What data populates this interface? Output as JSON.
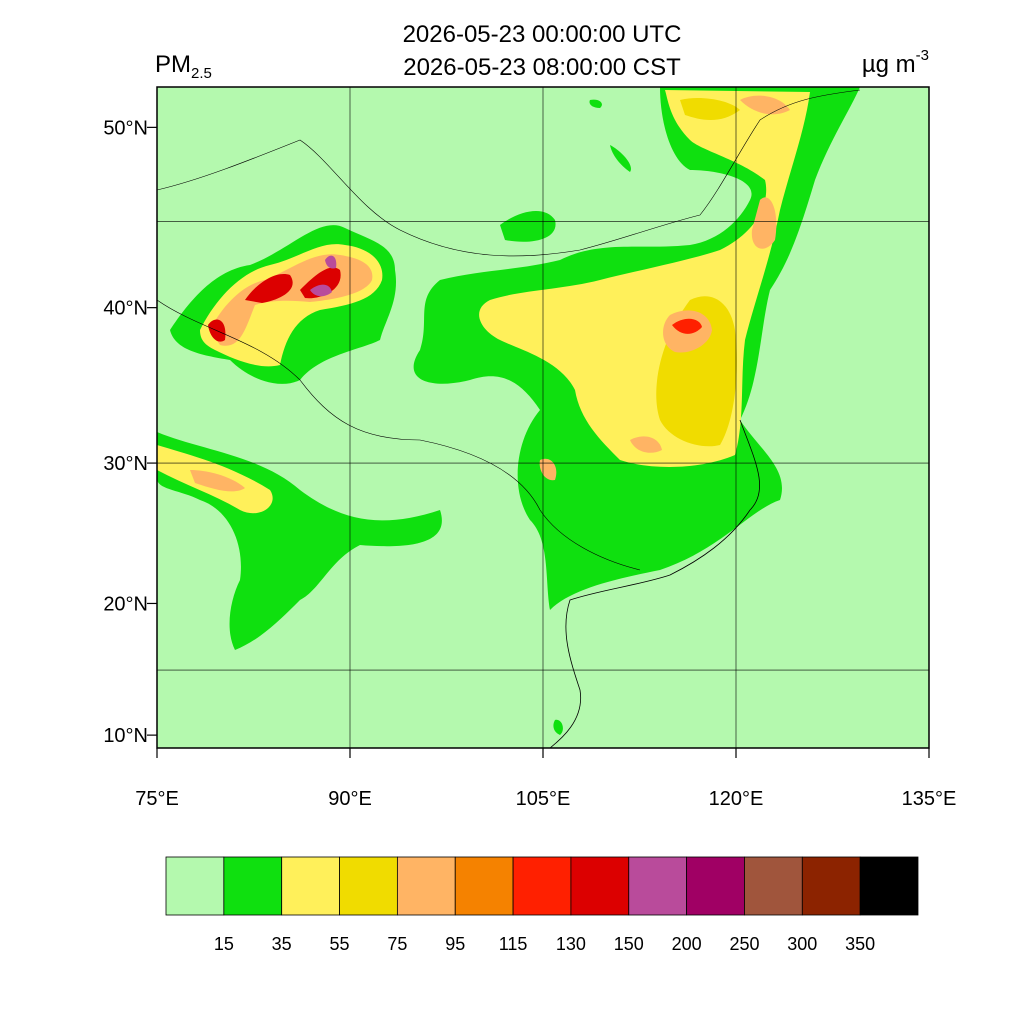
{
  "chart_data": {
    "type": "map",
    "title": [
      "2026-05-23 00:00:00 UTC",
      "2026-05-23 08:00:00 CST"
    ],
    "variable": "PM",
    "variable_subscript": "2.5",
    "units": "µg m",
    "units_superscript": "-3",
    "xlim": [
      75,
      135
    ],
    "ylim": [
      9,
      52
    ],
    "xticks": [
      {
        "value": 75,
        "label": "75°E"
      },
      {
        "value": 90,
        "label": "90°E"
      },
      {
        "value": 105,
        "label": "105°E"
      },
      {
        "value": 120,
        "label": "120°E"
      },
      {
        "value": 135,
        "label": "135°E"
      }
    ],
    "yticks": [
      {
        "value": 10,
        "label": "10°N"
      },
      {
        "value": 20,
        "label": "20°N"
      },
      {
        "value": 30,
        "label": "30°N"
      },
      {
        "value": 40,
        "label": "40°N"
      },
      {
        "value": 50,
        "label": "50°N"
      }
    ],
    "grid_lons": [
      90,
      105,
      120
    ],
    "grid_lats": [
      15,
      30,
      45
    ],
    "colorbar": {
      "levels": [
        15,
        35,
        55,
        75,
        95,
        115,
        130,
        150,
        200,
        250,
        300,
        350
      ],
      "colors": [
        "#b4f9ae",
        "#0fe00f",
        "#fff05a",
        "#f0dc00",
        "#ffb464",
        "#f58200",
        "#ff2000",
        "#dc0000",
        "#b94b9b",
        "#a00064",
        "#a0553c",
        "#8c2300",
        "#000000"
      ]
    }
  }
}
